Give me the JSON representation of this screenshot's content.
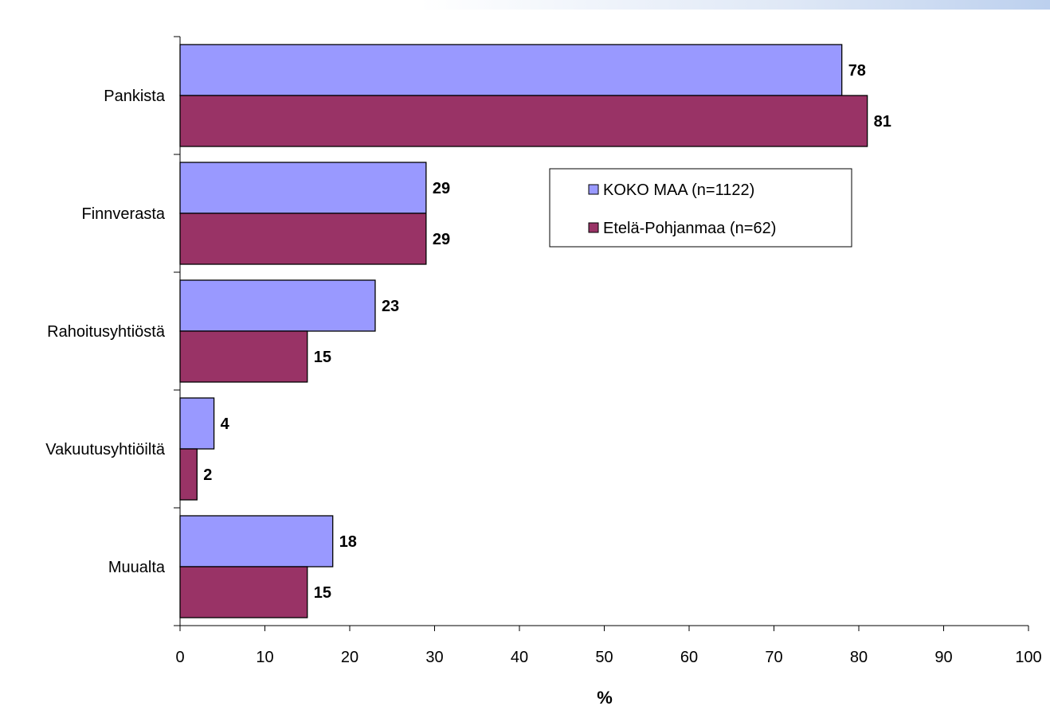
{
  "chart_data": {
    "type": "bar",
    "orientation": "horizontal",
    "categories": [
      "Pankista",
      "Finnverasta",
      "Rahoitusyhtiöstä",
      "Vakuutusyhtiöiltä",
      "Muualta"
    ],
    "series": [
      {
        "name": "KOKO MAA (n=1122)",
        "values": [
          78,
          29,
          23,
          4,
          18
        ],
        "color": "#9999ff"
      },
      {
        "name": "Etelä-Pohjanmaa (n=62)",
        "values": [
          81,
          29,
          15,
          2,
          15
        ],
        "color": "#993366"
      }
    ],
    "x_ticks": [
      "0",
      "10",
      "20",
      "30",
      "40",
      "50",
      "60",
      "70",
      "80",
      "90",
      "100"
    ],
    "xlabel": "%",
    "xlim": [
      0,
      100
    ],
    "grid": false,
    "legend_position": "top-right"
  }
}
